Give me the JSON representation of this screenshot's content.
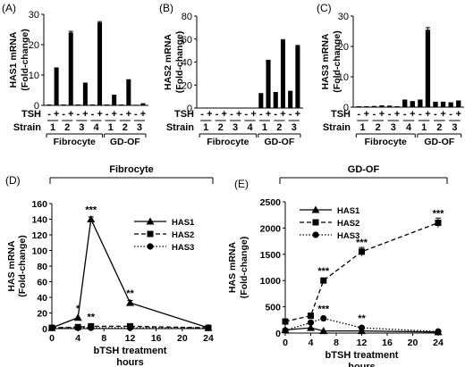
{
  "chart_data": [
    {
      "panel": "(A)",
      "type": "bar",
      "ylabel": [
        "HAS1 mRNA",
        "(Fold-change)"
      ],
      "ylim": [
        0,
        30
      ],
      "yticks": [
        0,
        10,
        20,
        30
      ],
      "treatment_label": "TSH",
      "strain_label": "Strain",
      "tsh_signs": [
        "-",
        "+",
        "-",
        "+",
        "-",
        "+",
        "-",
        "+",
        "-",
        "+",
        "-",
        "+",
        "-",
        "+"
      ],
      "strains": [
        "1",
        "2",
        "3",
        "4",
        "1",
        "2",
        "3"
      ],
      "groups": [
        {
          "name": "Fibrocyte",
          "strains": 4
        },
        {
          "name": "GD-OF",
          "strains": 3
        }
      ],
      "values": [
        0.3,
        12.5,
        0.3,
        24.0,
        0.3,
        7.5,
        0.3,
        27.3,
        0.3,
        3.5,
        0.3,
        8.6,
        0.2,
        0.7
      ],
      "errors": [
        0,
        0,
        0,
        0.4,
        0,
        0,
        0,
        0.3,
        0,
        0,
        0,
        0,
        0,
        0
      ]
    },
    {
      "panel": "(B)",
      "type": "bar",
      "ylabel": [
        "HAS2 mRNA",
        "(Fold-change)"
      ],
      "ylim": [
        0,
        80
      ],
      "yticks": [
        0,
        20,
        40,
        60,
        80
      ],
      "treatment_label": "TSH",
      "strain_label": "Strain",
      "tsh_signs": [
        "-",
        "+",
        "-",
        "+",
        "-",
        "+",
        "-",
        "+",
        "-",
        "+",
        "-",
        "+",
        "-",
        "+"
      ],
      "strains": [
        "1",
        "2",
        "3",
        "4",
        "1",
        "2",
        "3"
      ],
      "groups": [
        {
          "name": "Fibrocyte",
          "strains": 4
        },
        {
          "name": "GD-OF",
          "strains": 3
        }
      ],
      "values": [
        0.3,
        0.3,
        0.3,
        0.3,
        0.3,
        0.3,
        0.3,
        0.3,
        13,
        42,
        14,
        59,
        15,
        54
      ],
      "errors": [
        0,
        0,
        0,
        0,
        0,
        0,
        0,
        0,
        0,
        0,
        0,
        0.6,
        0,
        0.5
      ]
    },
    {
      "panel": "(C)",
      "type": "bar",
      "ylabel": [
        "HAS3 mRNA",
        "(Fold-change)"
      ],
      "ylim": [
        0,
        30
      ],
      "yticks": [
        0,
        10,
        20,
        30
      ],
      "treatment_label": "TSH",
      "strain_label": "Strain",
      "tsh_signs": [
        "-",
        "+",
        "-",
        "+",
        "-",
        "+",
        "-",
        "+",
        "-",
        "+",
        "-",
        "+",
        "-",
        "+"
      ],
      "strains": [
        "1",
        "2",
        "3",
        "4",
        "1",
        "2",
        "3"
      ],
      "groups": [
        {
          "name": "Fibrocyte",
          "strains": 4
        },
        {
          "name": "GD-OF",
          "strains": 3
        }
      ],
      "values": [
        0.3,
        0.3,
        0.4,
        0.6,
        0.5,
        0.3,
        2.5,
        2.0,
        2.5,
        25.5,
        1.8,
        1.8,
        1.6,
        2.2
      ],
      "errors": [
        0,
        0,
        0,
        0,
        0,
        0,
        0,
        0,
        0,
        0.7,
        0,
        0,
        0,
        0
      ]
    },
    {
      "panel": "(D)",
      "type": "line",
      "bracket_label": "Fibrocyte",
      "ylabel": "HAS mRNA",
      "ylabel2": "(Fold-change)",
      "xlabel": "bTSH treatment",
      "xlabel2": "hours",
      "x": [
        0,
        4,
        6,
        12,
        24
      ],
      "xticks": [
        0,
        4,
        8,
        12,
        16,
        20,
        24
      ],
      "ylim": [
        0,
        160
      ],
      "yticks": [
        0,
        20,
        40,
        60,
        80,
        100,
        120,
        140,
        160
      ],
      "series": [
        {
          "name": "HAS1",
          "marker": "triangle",
          "dash": "solid",
          "values": [
            1,
            14,
            140,
            33,
            1
          ],
          "errors": [
            0,
            0,
            3,
            3,
            0
          ]
        },
        {
          "name": "HAS2",
          "marker": "square",
          "dash": "dashed",
          "values": [
            1,
            2,
            3,
            3,
            1
          ],
          "errors": [
            0,
            0,
            0,
            0,
            0
          ]
        },
        {
          "name": "HAS3",
          "marker": "circle",
          "dash": "dotted",
          "values": [
            1,
            1,
            1,
            1,
            1
          ],
          "errors": [
            0,
            0,
            0,
            0,
            0
          ]
        }
      ],
      "annotations": [
        {
          "x": 4,
          "y": 14,
          "text": "*"
        },
        {
          "x": 6,
          "y": 140,
          "text": "***"
        },
        {
          "x": 6,
          "y": 3,
          "text": "**"
        },
        {
          "x": 12,
          "y": 33,
          "text": "**"
        }
      ]
    },
    {
      "panel": "(E)",
      "type": "line",
      "bracket_label": "GD-OF",
      "ylabel": "HAS mRNA",
      "ylabel2": "(Fold-change)",
      "xlabel": "bTSH treatment",
      "xlabel2": "hours",
      "x": [
        0,
        4,
        6,
        12,
        24
      ],
      "xticks": [
        0,
        4,
        8,
        12,
        16,
        20,
        24
      ],
      "ylim": [
        0,
        2500
      ],
      "yticks": [
        0,
        500,
        1000,
        1500,
        2000,
        2500
      ],
      "series": [
        {
          "name": "HAS1",
          "marker": "triangle",
          "dash": "solid",
          "values": [
            60,
            100,
            40,
            40,
            20
          ],
          "errors": [
            0,
            0,
            0,
            0,
            0
          ]
        },
        {
          "name": "HAS2",
          "marker": "square",
          "dash": "dashed",
          "values": [
            220,
            330,
            1000,
            1550,
            2100
          ],
          "errors": [
            0,
            0,
            40,
            80,
            90
          ]
        },
        {
          "name": "HAS3",
          "marker": "circle",
          "dash": "dotted",
          "values": [
            50,
            200,
            280,
            100,
            30
          ],
          "errors": [
            0,
            0,
            0,
            0,
            0
          ]
        }
      ],
      "annotations": [
        {
          "x": 6,
          "y": 1000,
          "text": "***"
        },
        {
          "x": 6,
          "y": 280,
          "text": "***"
        },
        {
          "x": 12,
          "y": 1550,
          "text": "***"
        },
        {
          "x": 12,
          "y": 100,
          "text": "**"
        },
        {
          "x": 24,
          "y": 2100,
          "text": "***"
        }
      ]
    }
  ]
}
